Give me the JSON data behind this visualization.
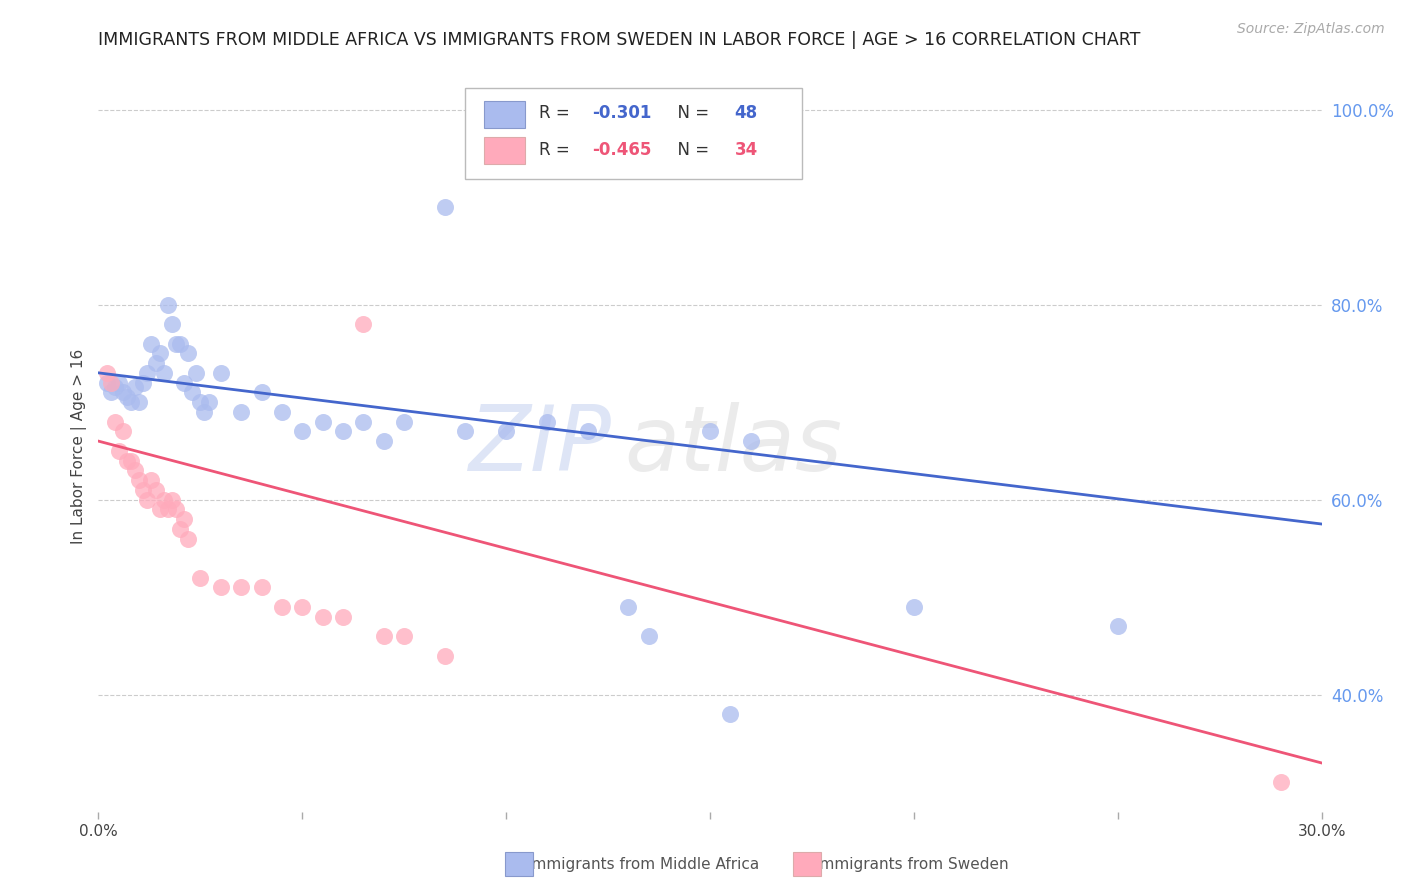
{
  "title": "IMMIGRANTS FROM MIDDLE AFRICA VS IMMIGRANTS FROM SWEDEN IN LABOR FORCE | AGE > 16 CORRELATION CHART",
  "source": "Source: ZipAtlas.com",
  "ylabel": "In Labor Force | Age > 16",
  "right_axis_label_color": "#6699ee",
  "watermark_text": "ZIP",
  "watermark_text2": "atlas",
  "legend_blue_label": "Immigrants from Middle Africa",
  "legend_pink_label": "Immigrants from Sweden",
  "R_blue": -0.301,
  "N_blue": 48,
  "R_pink": -0.465,
  "N_pink": 34,
  "x_min": 0.0,
  "x_max": 0.3,
  "y_min": 0.28,
  "y_max": 1.03,
  "x_ticks": [
    0.0,
    0.05,
    0.1,
    0.15,
    0.2,
    0.25,
    0.3
  ],
  "x_tick_labels": [
    "0.0%",
    "",
    "",
    "",
    "",
    "",
    "30.0%"
  ],
  "y_ticks_right": [
    1.0,
    0.8,
    0.6,
    0.4
  ],
  "y_tick_labels_right": [
    "100.0%",
    "80.0%",
    "60.0%",
    "40.0%"
  ],
  "blue_color": "#aabbee",
  "pink_color": "#ffaabb",
  "line_blue_color": "#4466cc",
  "line_pink_color": "#ee5577",
  "blue_scatter": [
    [
      0.002,
      0.72
    ],
    [
      0.003,
      0.71
    ],
    [
      0.004,
      0.715
    ],
    [
      0.005,
      0.72
    ],
    [
      0.006,
      0.71
    ],
    [
      0.007,
      0.705
    ],
    [
      0.008,
      0.7
    ],
    [
      0.009,
      0.715
    ],
    [
      0.01,
      0.7
    ],
    [
      0.011,
      0.72
    ],
    [
      0.012,
      0.73
    ],
    [
      0.013,
      0.76
    ],
    [
      0.014,
      0.74
    ],
    [
      0.015,
      0.75
    ],
    [
      0.016,
      0.73
    ],
    [
      0.017,
      0.8
    ],
    [
      0.018,
      0.78
    ],
    [
      0.019,
      0.76
    ],
    [
      0.02,
      0.76
    ],
    [
      0.021,
      0.72
    ],
    [
      0.022,
      0.75
    ],
    [
      0.023,
      0.71
    ],
    [
      0.024,
      0.73
    ],
    [
      0.025,
      0.7
    ],
    [
      0.026,
      0.69
    ],
    [
      0.027,
      0.7
    ],
    [
      0.03,
      0.73
    ],
    [
      0.035,
      0.69
    ],
    [
      0.04,
      0.71
    ],
    [
      0.045,
      0.69
    ],
    [
      0.05,
      0.67
    ],
    [
      0.055,
      0.68
    ],
    [
      0.06,
      0.67
    ],
    [
      0.065,
      0.68
    ],
    [
      0.07,
      0.66
    ],
    [
      0.075,
      0.68
    ],
    [
      0.085,
      0.9
    ],
    [
      0.09,
      0.67
    ],
    [
      0.1,
      0.67
    ],
    [
      0.11,
      0.68
    ],
    [
      0.12,
      0.67
    ],
    [
      0.13,
      0.49
    ],
    [
      0.135,
      0.46
    ],
    [
      0.15,
      0.67
    ],
    [
      0.155,
      0.38
    ],
    [
      0.16,
      0.66
    ],
    [
      0.2,
      0.49
    ],
    [
      0.25,
      0.47
    ]
  ],
  "pink_scatter": [
    [
      0.002,
      0.73
    ],
    [
      0.003,
      0.72
    ],
    [
      0.004,
      0.68
    ],
    [
      0.005,
      0.65
    ],
    [
      0.006,
      0.67
    ],
    [
      0.007,
      0.64
    ],
    [
      0.008,
      0.64
    ],
    [
      0.009,
      0.63
    ],
    [
      0.01,
      0.62
    ],
    [
      0.011,
      0.61
    ],
    [
      0.012,
      0.6
    ],
    [
      0.013,
      0.62
    ],
    [
      0.014,
      0.61
    ],
    [
      0.015,
      0.59
    ],
    [
      0.016,
      0.6
    ],
    [
      0.017,
      0.59
    ],
    [
      0.018,
      0.6
    ],
    [
      0.019,
      0.59
    ],
    [
      0.02,
      0.57
    ],
    [
      0.021,
      0.58
    ],
    [
      0.022,
      0.56
    ],
    [
      0.025,
      0.52
    ],
    [
      0.03,
      0.51
    ],
    [
      0.035,
      0.51
    ],
    [
      0.04,
      0.51
    ],
    [
      0.045,
      0.49
    ],
    [
      0.05,
      0.49
    ],
    [
      0.055,
      0.48
    ],
    [
      0.06,
      0.48
    ],
    [
      0.065,
      0.78
    ],
    [
      0.07,
      0.46
    ],
    [
      0.075,
      0.46
    ],
    [
      0.085,
      0.44
    ],
    [
      0.29,
      0.31
    ]
  ],
  "blue_line_x": [
    0.0,
    0.3
  ],
  "blue_line_y": [
    0.73,
    0.575
  ],
  "pink_line_x": [
    0.0,
    0.3
  ],
  "pink_line_y": [
    0.66,
    0.33
  ]
}
